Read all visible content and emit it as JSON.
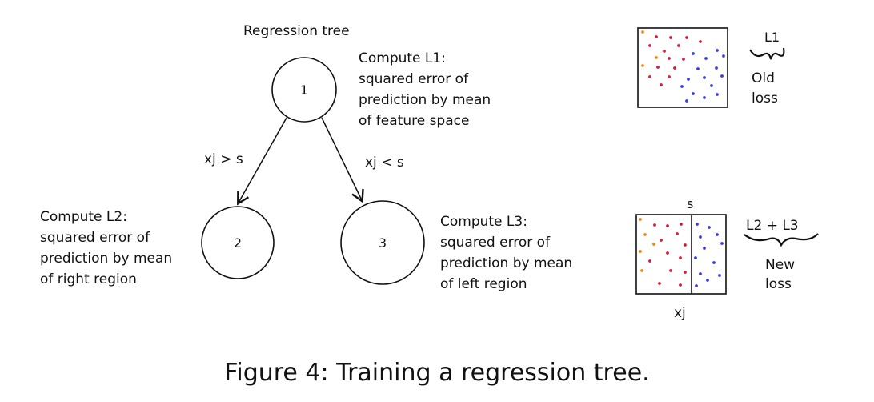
{
  "title": "Regression tree",
  "nodes": [
    {
      "label": "1",
      "note": [
        "Compute L1:",
        "squared error of",
        "prediction by mean",
        "of feature space"
      ]
    },
    {
      "label": "2",
      "note": [
        "Compute L2:",
        "squared error of",
        "prediction by mean",
        "of right region"
      ]
    },
    {
      "label": "3",
      "note": [
        "Compute L3:",
        "squared error of",
        "prediction by mean",
        "of left region"
      ]
    }
  ],
  "edges": [
    {
      "label": "xj > s"
    },
    {
      "label": "xj < s"
    }
  ],
  "top_panel": {
    "loss_label": "L1",
    "loss_caption": [
      "Old",
      "loss"
    ]
  },
  "bottom_panel": {
    "split_label": "s",
    "axis_label": "xj",
    "loss_label": "L2 + L3",
    "loss_caption": [
      "New",
      "loss"
    ]
  },
  "colors": {
    "red": "#d0203a",
    "blue": "#3b3fd6",
    "orange": "#e88a1a",
    "ink": "#111111"
  },
  "caption": "Figure 4: Training a regression tree."
}
